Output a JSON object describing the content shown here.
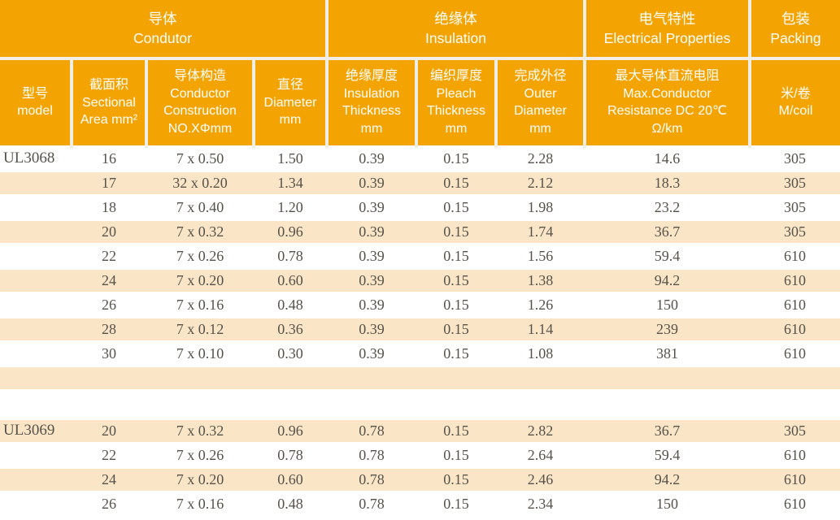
{
  "document": {
    "kind": "wire-specification-table",
    "models_shown": [
      "UL3068",
      "UL3069"
    ]
  },
  "colors": {
    "header_background": "#F3A402",
    "stripe_background": "#FAE6C6",
    "header_text": "#FFFFFF",
    "body_text": "#56524B",
    "separator_line": "#F2EEE5"
  },
  "table": {
    "groups": [
      {
        "text": "导体\nCondutor",
        "colspan": 4
      },
      {
        "text": "绝缘体\nInsulation",
        "colspan": 3
      },
      {
        "text": "电气特性\nElectrical Properties",
        "colspan": 1
      },
      {
        "text": "包装\nPacking",
        "colspan": 1
      }
    ],
    "columns": [
      {
        "id": "model",
        "text": "型号\nmodel"
      },
      {
        "id": "sectional-area",
        "text": "截面积\nSectional\nArea mm²"
      },
      {
        "id": "conductor-construction",
        "text": "导体构造\nConductor\nConstruction\nNO.XΦmm"
      },
      {
        "id": "diameter",
        "text": "直径\nDiameter\nmm"
      },
      {
        "id": "insulation-thickness",
        "text": "绝缘厚度\nInsulation\nThickness\nmm"
      },
      {
        "id": "pleach-thickness",
        "text": "编织厚度\nPleach\nThickness\nmm"
      },
      {
        "id": "outer-diameter",
        "text": "完成外径\nOuter\nDiameter\nmm"
      },
      {
        "id": "max-resistance",
        "text": "最大导体直流电阻\nMax.Conductor\nResistance DC 20℃\nΩ/km"
      },
      {
        "id": "m-per-coil",
        "text": "米/卷\nM/coil"
      }
    ],
    "rows": [
      {
        "model": "UL3068",
        "values": [
          "16",
          "7 x 0.50",
          "1.50",
          "0.39",
          "0.15",
          "2.28",
          "14.6",
          "305"
        ],
        "striped": false
      },
      {
        "model": "",
        "values": [
          "17",
          "32 x 0.20",
          "1.34",
          "0.39",
          "0.15",
          "2.12",
          "18.3",
          "305"
        ],
        "striped": true
      },
      {
        "model": "",
        "values": [
          "18",
          "7 x 0.40",
          "1.20",
          "0.39",
          "0.15",
          "1.98",
          "23.2",
          "305"
        ],
        "striped": false
      },
      {
        "model": "",
        "values": [
          "20",
          "7 x 0.32",
          "0.96",
          "0.39",
          "0.15",
          "1.74",
          "36.7",
          "305"
        ],
        "striped": true
      },
      {
        "model": "",
        "values": [
          "22",
          "7 x 0.26",
          "0.78",
          "0.39",
          "0.15",
          "1.56",
          "59.4",
          "610"
        ],
        "striped": false
      },
      {
        "model": "",
        "values": [
          "24",
          "7 x 0.20",
          "0.60",
          "0.39",
          "0.15",
          "1.38",
          "94.2",
          "610"
        ],
        "striped": true
      },
      {
        "model": "",
        "values": [
          "26",
          "7 x 0.16",
          "0.48",
          "0.39",
          "0.15",
          "1.26",
          "150",
          "610"
        ],
        "striped": false
      },
      {
        "model": "",
        "values": [
          "28",
          "7 x 0.12",
          "0.36",
          "0.39",
          "0.15",
          "1.14",
          "239",
          "610"
        ],
        "striped": true
      },
      {
        "model": "",
        "values": [
          "30",
          "7 x 0.10",
          "0.30",
          "0.39",
          "0.15",
          "1.08",
          "381",
          "610"
        ],
        "striped": false
      },
      {
        "type": "spacer",
        "striped": true
      },
      {
        "type": "spacer",
        "striped": false,
        "tall": true
      },
      {
        "model": "UL3069",
        "values": [
          "20",
          "7 x 0.32",
          "0.96",
          "0.78",
          "0.15",
          "2.82",
          "36.7",
          "305"
        ],
        "striped": true
      },
      {
        "model": "",
        "values": [
          "22",
          "7 x 0.26",
          "0.78",
          "0.78",
          "0.15",
          "2.64",
          "59.4",
          "610"
        ],
        "striped": false
      },
      {
        "model": "",
        "values": [
          "24",
          "7 x 0.20",
          "0.60",
          "0.78",
          "0.15",
          "2.46",
          "94.2",
          "610"
        ],
        "striped": true
      },
      {
        "model": "",
        "values": [
          "26",
          "7 x 0.16",
          "0.48",
          "0.78",
          "0.15",
          "2.34",
          "150",
          "610"
        ],
        "striped": false
      }
    ]
  }
}
